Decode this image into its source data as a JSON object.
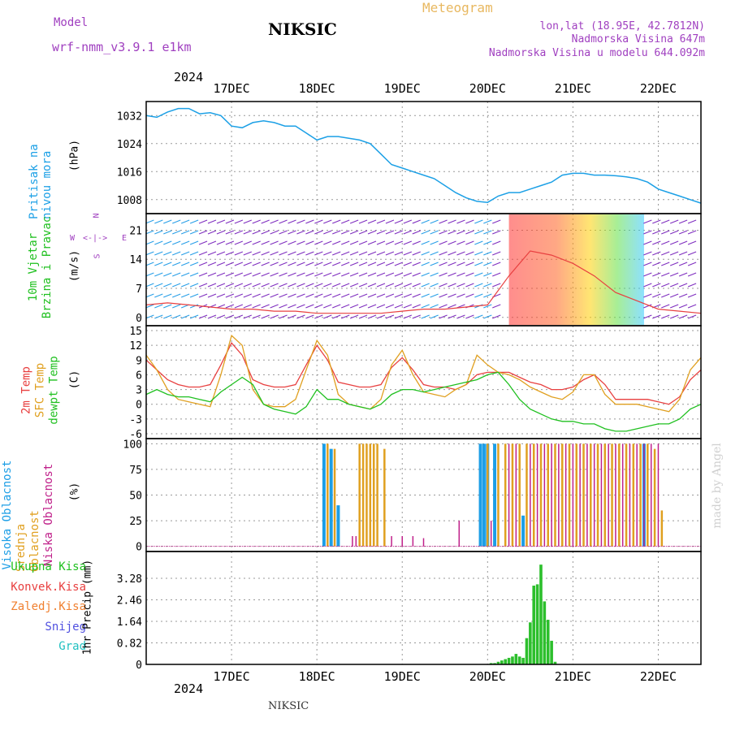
{
  "header": {
    "model_label": "Model",
    "model_name": "wrf-nmm_v3.9.1 e1km",
    "station": "NIKSIC",
    "product": "Meteogram",
    "coords": "lon,lat (18.95E, 42.7812N)",
    "altitude": "Nadmorska Visina 647m",
    "model_altitude": "Nadmorska Visina u modelu 644.092m"
  },
  "footer": {
    "station": "NIKSIC",
    "watermark": "made by Angel"
  },
  "colors": {
    "pressure": "#1ca0e6",
    "t2m": "#e84040",
    "sfc": "#e0a020",
    "dewpt": "#20c020",
    "high_cloud": "#1c9ee6",
    "mid_cloud": "#e0a020",
    "low_cloud": "#c0208a",
    "precip": "#2cbf2c",
    "wind_axis": "#a040c0"
  },
  "chart_data": {
    "time_axis": {
      "year": "2024",
      "days": [
        "17DEC",
        "18DEC",
        "19DEC",
        "20DEC",
        "21DEC",
        "22DEC"
      ],
      "start_hour": -12,
      "end_hour": 144
    },
    "panels": [
      {
        "id": "pressure",
        "type": "line",
        "labels": [
          "Pritisak na nivou mora"
        ],
        "unit": "(hPa)",
        "ylim": [
          1004,
          1036
        ],
        "yticks": [
          1008,
          1016,
          1024,
          1032
        ],
        "grid": true,
        "series": [
          {
            "hours": [
              -12,
              -9,
              -6,
              -3,
              0,
              3,
              6,
              9,
              12,
              15,
              18,
              21,
              24,
              27,
              30,
              33,
              36,
              39,
              42,
              45,
              48,
              51,
              54,
              57,
              60,
              63,
              66,
              69,
              72,
              75,
              78,
              81,
              84,
              87,
              90,
              93,
              96,
              99,
              102,
              105,
              108,
              111,
              114,
              117,
              120,
              123,
              126,
              129,
              132,
              135,
              138,
              141,
              144
            ],
            "values": [
              1032,
              1031.5,
              1033,
              1034,
              1034,
              1032.5,
              1032.8,
              1032,
              1029,
              1028.5,
              1030,
              1030.5,
              1030,
              1029,
              1029,
              1027,
              1025,
              1026,
              1026,
              1025.5,
              1025,
              1024,
              1021,
              1018,
              1017,
              1016,
              1015,
              1014,
              1012,
              1010,
              1008.5,
              1007.5,
              1007.2,
              1009,
              1010,
              1010,
              1011,
              1012,
              1013,
              1015,
              1015.5,
              1015.5,
              1015,
              1015,
              1014.8,
              1014.5,
              1014,
              1013,
              1011,
              1010,
              1009,
              1008,
              1007
            ]
          }
        ]
      },
      {
        "id": "wind",
        "type": "line",
        "labels": [
          "10m Vjetar",
          "Brzina i Pravac"
        ],
        "unit": "(m/s)",
        "ylim": [
          -2,
          25
        ],
        "yticks": [
          0,
          7,
          14,
          21
        ],
        "grid": true,
        "compass": {
          "n": "N",
          "s": "S",
          "e": "E",
          "w": "W"
        },
        "series": [
          {
            "name": "speed",
            "hours": [
              -12,
              -6,
              0,
              6,
              12,
              18,
              24,
              30,
              36,
              42,
              48,
              54,
              60,
              66,
              72,
              78,
              84,
              90,
              96,
              102,
              108,
              114,
              120,
              126,
              132,
              138,
              144
            ],
            "values": [
              3,
              3.5,
              3,
              2.5,
              2,
              2,
              1.5,
              1.5,
              1,
              1,
              1,
              1,
              1.5,
              2,
              2,
              2.5,
              3,
              10,
              16,
              15,
              13,
              10,
              6,
              4,
              2,
              1.5,
              1
            ]
          }
        ]
      },
      {
        "id": "temperature",
        "type": "line",
        "labels": [
          "2m Temp",
          "SFC Temp",
          "dewpt Temp"
        ],
        "unit": "(C)",
        "ylim": [
          -7,
          16
        ],
        "yticks": [
          -6,
          -3,
          0,
          3,
          6,
          9,
          12,
          15
        ],
        "grid": true,
        "series": [
          {
            "name": "2m Temp",
            "hours": [
              -12,
              -9,
              -6,
              -3,
              0,
              3,
              6,
              9,
              12,
              15,
              18,
              21,
              24,
              27,
              30,
              33,
              36,
              39,
              42,
              45,
              48,
              51,
              54,
              57,
              60,
              63,
              66,
              69,
              72,
              75,
              78,
              81,
              84,
              87,
              90,
              93,
              96,
              99,
              102,
              105,
              108,
              111,
              114,
              117,
              120,
              123,
              126,
              129,
              132,
              135,
              138,
              141,
              144
            ],
            "values": [
              9,
              7,
              5,
              4,
              3.5,
              3.5,
              4,
              8,
              12.5,
              10,
              5,
              4,
              3.5,
              3.5,
              4,
              8,
              12,
              9,
              4.5,
              4,
              3.5,
              3.5,
              4,
              7.5,
              9.5,
              7,
              4,
              3.5,
              3.5,
              3,
              4,
              6,
              6.5,
              6.5,
              6.5,
              5.5,
              4.5,
              4,
              3,
              3,
              3.5,
              5,
              6,
              4,
              1,
              1,
              1,
              1,
              0.5,
              0,
              1.5,
              5,
              7
            ]
          },
          {
            "name": "SFC Temp",
            "hours": [
              -12,
              -9,
              -6,
              -3,
              0,
              3,
              6,
              9,
              12,
              15,
              18,
              21,
              24,
              27,
              30,
              33,
              36,
              39,
              42,
              45,
              48,
              51,
              54,
              57,
              60,
              63,
              66,
              69,
              72,
              75,
              78,
              81,
              84,
              87,
              90,
              93,
              96,
              99,
              102,
              105,
              108,
              111,
              114,
              117,
              120,
              123,
              126,
              129,
              132,
              135,
              138,
              141,
              144
            ],
            "values": [
              10,
              7,
              3,
              1,
              0.5,
              0,
              -0.5,
              6,
              14,
              12,
              3,
              0,
              -0.5,
              -0.5,
              1,
              7,
              13,
              10,
              2,
              0,
              -0.5,
              -1,
              1,
              8,
              11,
              6,
              2.5,
              2,
              1.5,
              3,
              4,
              10,
              8,
              6.5,
              6,
              5,
              3.5,
              2.5,
              1.5,
              1,
              2.5,
              6,
              6,
              2,
              0,
              0,
              0,
              -0.5,
              -1,
              -1.5,
              1,
              7,
              9.5
            ]
          },
          {
            "name": "dewpt Temp",
            "hours": [
              -12,
              -9,
              -6,
              -3,
              0,
              3,
              6,
              9,
              12,
              15,
              18,
              21,
              24,
              27,
              30,
              33,
              36,
              39,
              42,
              45,
              48,
              51,
              54,
              57,
              60,
              63,
              66,
              69,
              72,
              75,
              78,
              81,
              84,
              87,
              90,
              93,
              96,
              99,
              102,
              105,
              108,
              111,
              114,
              117,
              120,
              123,
              126,
              129,
              132,
              135,
              138,
              141,
              144
            ],
            "values": [
              2,
              3,
              2,
              1.5,
              1.5,
              1,
              0.5,
              2.5,
              4,
              5.5,
              4,
              0,
              -1,
              -1.5,
              -2,
              -0.5,
              3,
              1,
              1,
              0,
              -0.5,
              -1,
              0,
              2,
              3,
              3,
              2.5,
              3,
              3.5,
              4,
              4.5,
              5,
              6,
              6.5,
              4,
              1,
              -1,
              -2,
              -3,
              -3.5,
              -3.5,
              -4,
              -4,
              -5,
              -5.5,
              -5.5,
              -5,
              -4.5,
              -4,
              -4,
              -3,
              -1,
              0
            ]
          }
        ]
      },
      {
        "id": "clouds",
        "type": "bar",
        "labels": [
          "Visoka Oblacnost",
          "Srednja Oblacnost",
          "Niska Oblacnost"
        ],
        "unit": "(%)",
        "ylim": [
          -5,
          105
        ],
        "yticks": [
          0,
          25,
          50,
          75,
          100
        ],
        "grid": true,
        "series": [
          {
            "name": "Visoka Oblacnost",
            "hours": [
              38,
              40,
              42,
              82,
              83,
              84,
              86,
              94,
              128
            ],
            "values": [
              100,
              95,
              40,
              100,
              100,
              100,
              100,
              30,
              100
            ]
          },
          {
            "name": "Srednja Oblacnost",
            "hours": [
              39,
              41,
              48,
              49,
              50,
              51,
              52,
              53,
              55,
              84,
              87,
              89,
              91,
              93,
              95,
              97,
              99,
              101,
              103,
              105,
              107,
              109,
              111,
              113,
              115,
              117,
              119,
              121,
              123,
              125,
              127,
              129,
              131,
              133
            ],
            "values": [
              100,
              95,
              100,
              100,
              100,
              100,
              100,
              100,
              95,
              100,
              100,
              100,
              100,
              100,
              100,
              100,
              100,
              100,
              100,
              100,
              100,
              100,
              100,
              100,
              100,
              100,
              100,
              100,
              100,
              100,
              100,
              100,
              95,
              35
            ]
          },
          {
            "name": "Niska Oblacnost",
            "hours": [
              46,
              47,
              57,
              60,
              63,
              66,
              76,
              85,
              90,
              92,
              96,
              98,
              100,
              102,
              104,
              106,
              108,
              110,
              112,
              114,
              116,
              118,
              120,
              122,
              124,
              126,
              128,
              130,
              132
            ],
            "values": [
              10,
              10,
              10,
              10,
              10,
              8,
              25,
              25,
              100,
              100,
              100,
              100,
              100,
              100,
              100,
              100,
              100,
              100,
              100,
              100,
              100,
              100,
              100,
              100,
              100,
              100,
              100,
              100,
              100
            ]
          }
        ]
      },
      {
        "id": "precip",
        "type": "bar",
        "labels": [
          "Ukupna Kisa",
          "Konvek.Kisa",
          "Zaledj.Kisa",
          "Snijeg",
          "Grad"
        ],
        "unit": "1hr Precip (mm)",
        "ylim": [
          0,
          4.3
        ],
        "yticks": [
          0,
          0.82,
          1.64,
          2.46,
          3.28
        ],
        "grid": true,
        "series": [
          {
            "name": "Ukupna Kisa",
            "hours": [
              85,
              86,
              87,
              88,
              89,
              90,
              91,
              92,
              93,
              94,
              95,
              96,
              97,
              98,
              99,
              100,
              101,
              102,
              103
            ],
            "values": [
              0.05,
              0.05,
              0.1,
              0.15,
              0.2,
              0.25,
              0.3,
              0.4,
              0.3,
              0.25,
              1.0,
              1.6,
              3.0,
              3.05,
              3.8,
              2.4,
              1.7,
              0.9,
              0.1
            ]
          }
        ]
      }
    ]
  }
}
